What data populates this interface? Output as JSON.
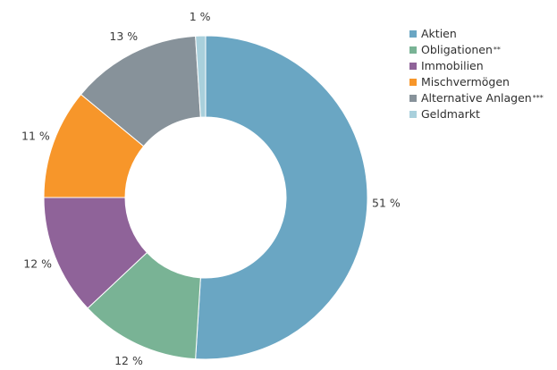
{
  "chart_data": {
    "type": "pie",
    "donut": true,
    "title": "",
    "slices": [
      {
        "name": "Aktien",
        "value": 51,
        "label": "51 %",
        "color": "#6aa6c3"
      },
      {
        "name": "Obligationen",
        "footnote": "**",
        "value": 12,
        "label": "12 %",
        "color": "#79b395"
      },
      {
        "name": "Immobilien",
        "value": 12,
        "label": "12 %",
        "color": "#8f6399"
      },
      {
        "name": "Mischvermögen",
        "value": 11,
        "label": "11 %",
        "color": "#f7962a"
      },
      {
        "name": "Alternative Anlagen",
        "footnote": "***",
        "value": 13,
        "label": "13 %",
        "color": "#87929a"
      },
      {
        "name": "Geldmarkt",
        "value": 1,
        "label": "1 %",
        "color": "#a9d0dc"
      }
    ],
    "legend_position": "top-right"
  }
}
